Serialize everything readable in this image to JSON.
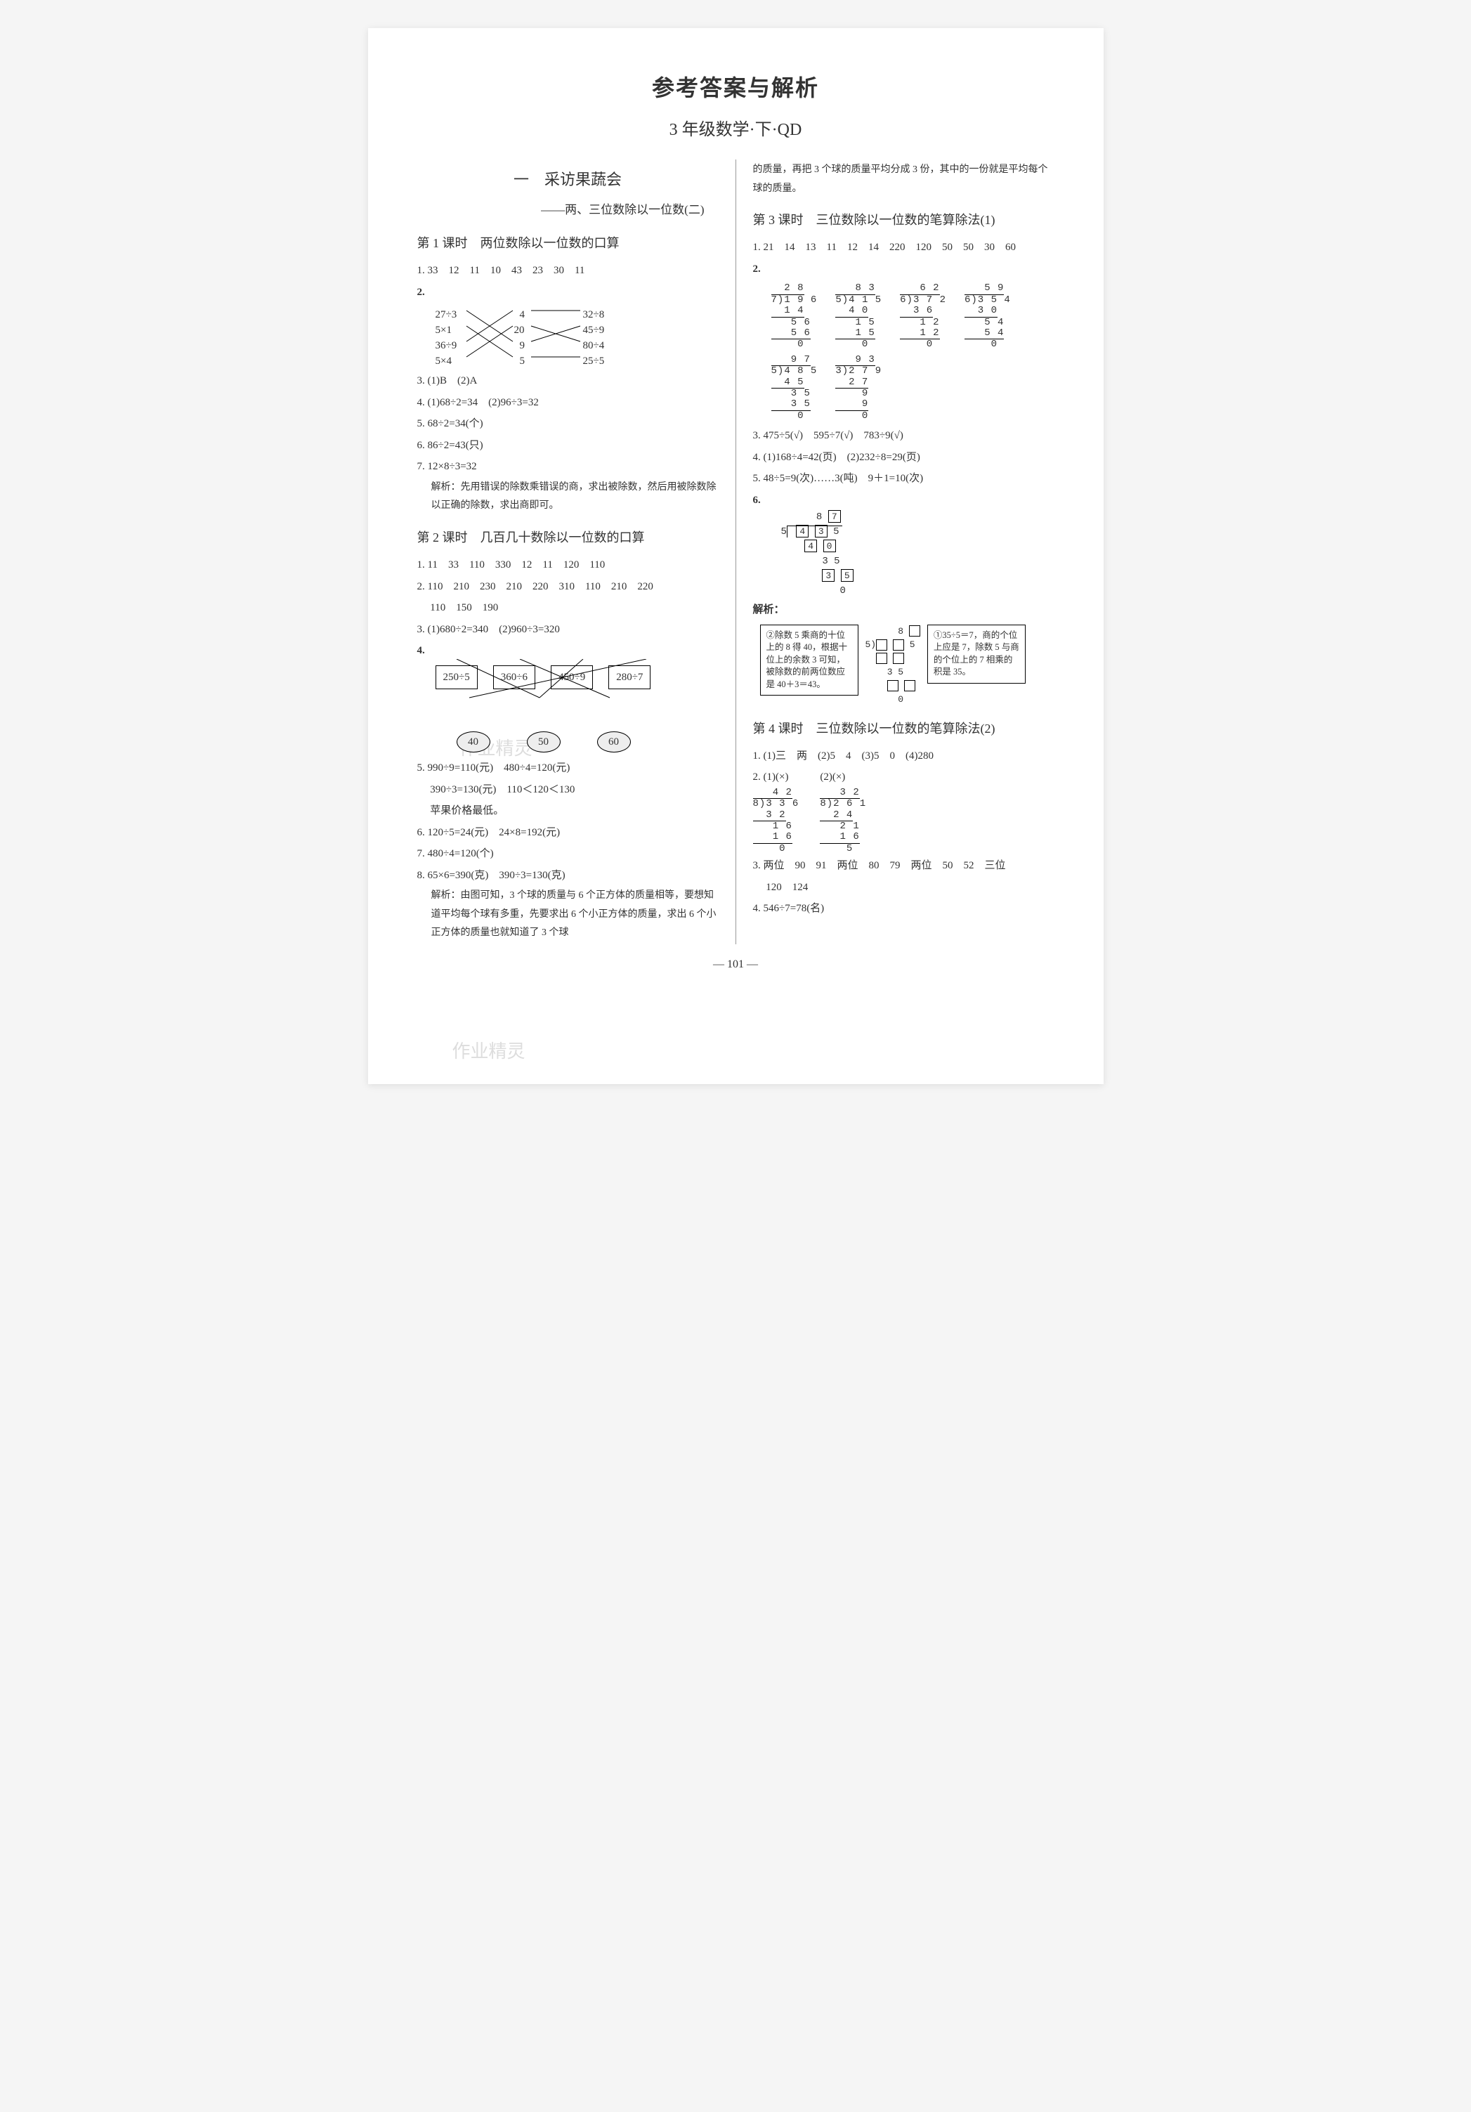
{
  "page": {
    "title_main": "参考答案与解析",
    "title_sub": "3 年级数学·下·QD",
    "page_num": "— 101 —",
    "watermark": "作业精灵"
  },
  "left": {
    "chapter": "一　采访果蔬会",
    "chapter_sub": "——两、三位数除以一位数(二)",
    "lesson1": {
      "title": "第 1 课时　两位数除以一位数的口算",
      "q1": "1. 33　12　11　10　43　23　30　11",
      "q2": {
        "label": "2.",
        "l": [
          "27÷3",
          "5×1",
          "36÷9",
          "5×4"
        ],
        "m": [
          "4",
          "20",
          "9",
          "5"
        ],
        "r": [
          "32÷8",
          "45÷9",
          "80÷4",
          "25÷5"
        ]
      },
      "q3": "3. (1)B　(2)A",
      "q4": "4. (1)68÷2=34　(2)96÷3=32",
      "q5": "5. 68÷2=34(个)",
      "q6": "6. 86÷2=43(只)",
      "q7": "7. 12×8÷3=32",
      "q7_ana": "解析：先用错误的除数乘错误的商，求出被除数，然后用被除数除以正确的除数，求出商即可。"
    },
    "lesson2": {
      "title": "第 2 课时　几百几十数除以一位数的口算",
      "q1": "1. 11　33　110　330　12　11　120　110",
      "q2a": "2. 110　210　230　210　220　310　110　210　220",
      "q2b": "　 110　150　190",
      "q3": "3. (1)680÷2=340　(2)960÷3=320",
      "q4": {
        "label": "4.",
        "boxes": [
          "250÷5",
          "360÷6",
          "450÷9",
          "280÷7"
        ],
        "ovals": [
          "40",
          "50",
          "60"
        ]
      },
      "q5a": "5. 990÷9=110(元)　480÷4=120(元)",
      "q5b": "　 390÷3=130(元)　110＜120＜130",
      "q5c": "　 苹果价格最低。",
      "q6": "6. 120÷5=24(元)　24×8=192(元)",
      "q7": "7. 480÷4=120(个)",
      "q8": "8. 65×6=390(克)　390÷3=130(克)",
      "q8_ana": "解析：由图可知，3 个球的质量与 6 个正方体的质量相等，要想知道平均每个球有多重，先要求出 6 个小正方体的质量，求出 6 个小正方体的质量也就知道了 3 个球"
    }
  },
  "right": {
    "cont": "的质量，再把 3 个球的质量平均分成 3 份，其中的一份就是平均每个球的质量。",
    "lesson3": {
      "title": "第 3 课时　三位数除以一位数的笔算除法(1)",
      "q1": "1. 21　14　13　11　12　14　220　120　50　50　30　60",
      "q2_label": "2.",
      "ld": [
        {
          "quo": "  2 8",
          "div": "7)1 9 6",
          "s": [
            "  1 4",
            "   5 6",
            "   5 6",
            "    0"
          ]
        },
        {
          "quo": "   8 3",
          "div": "5)4 1 5",
          "s": [
            "  4 0",
            "   1 5",
            "   1 5",
            "    0"
          ]
        },
        {
          "quo": "   6 2",
          "div": "6)3 7 2",
          "s": [
            "  3 6",
            "   1 2",
            "   1 2",
            "    0"
          ]
        },
        {
          "quo": "   5 9",
          "div": "6)3 5 4",
          "s": [
            "  3 0",
            "   5 4",
            "   5 4",
            "    0"
          ]
        },
        {
          "quo": "   9 7",
          "div": "5)4 8 5",
          "s": [
            "  4 5",
            "   3 5",
            "   3 5",
            "    0"
          ]
        },
        {
          "quo": "   9 3",
          "div": "3)2 7 9",
          "s": [
            "  2 7",
            "    9",
            "    9",
            "    0"
          ]
        }
      ],
      "q3": "3. 475÷5(√)　595÷7(√)　783÷9(√)",
      "q4": "4. (1)168÷4=42(页)　(2)232÷8=29(页)",
      "q5": "5. 48÷5=9(次)……3(吨)　9＋1=10(次)",
      "q6_label": "6.",
      "q6": {
        "top": [
          "8",
          "7"
        ],
        "divisor": "5",
        "row1": [
          "4",
          "3",
          "5"
        ],
        "row2": [
          "4",
          "0"
        ],
        "row3": "3 5",
        "row4": [
          "3",
          "5"
        ],
        "row5": "0"
      },
      "ana_label": "解析：",
      "ana_left": "②除数 5 乘商的十位上的 8 得 40，根据十位上的余数 3 可知，被除数的前两位数应是 40＋3＝43。",
      "ana_right": "①35÷5＝7，商的个位上应是 7，除数 5 与商的个位上的 7 相乘的积是 35。"
    },
    "lesson4": {
      "title": "第 4 课时　三位数除以一位数的笔算除法(2)",
      "q1": "1. (1)三　两　(2)5　4　(3)5　0　(4)280",
      "q2_label": "2. (1)(×)",
      "q2_label2": "(2)(×)",
      "ld2": [
        {
          "quo": "   4 2",
          "div": "8)3 3 6",
          "s": [
            "  3 2",
            "   1 6",
            "   1 6",
            "    0"
          ]
        },
        {
          "quo": "   3 2",
          "div": "8)2 6 1",
          "s": [
            "  2 4",
            "   2 1",
            "   1 6",
            "    5"
          ]
        }
      ],
      "q3": "3. 两位　90　91　两位　80　79　两位　50　52　三位",
      "q3b": "　 120　124",
      "q4": "4. 546÷7=78(名)"
    }
  }
}
